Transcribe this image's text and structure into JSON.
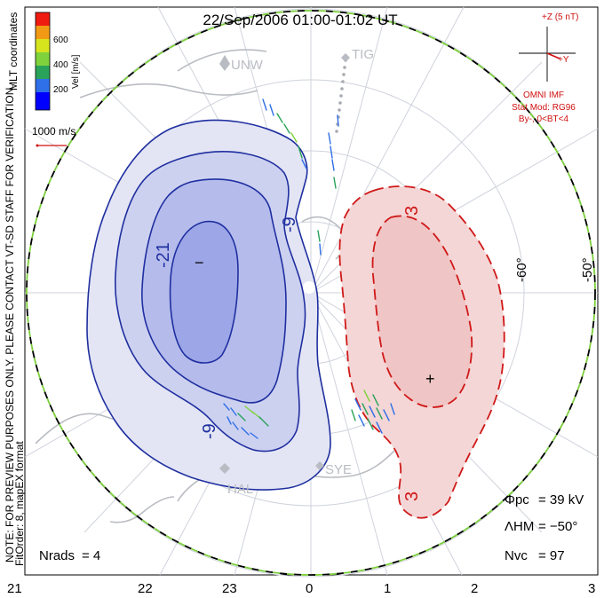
{
  "title": "22/Sep/2006 01:00-01:02 UT",
  "coords_label": "MLT coordinates",
  "colorbar": {
    "label": "Vel [m/s]",
    "ticks": [
      "600",
      "400",
      "200"
    ],
    "colors": [
      "#0000ff",
      "#2f6fe8",
      "#2aa35a",
      "#7fd23c",
      "#d6e41e",
      "#f29a16",
      "#ef1b10"
    ]
  },
  "ref_vector_label": "1000 m/s",
  "imf": {
    "z_label": "+Z (5 nT)",
    "y_label": "+Y",
    "source": "OMNI IMF",
    "model": "Stat Mod: RG96",
    "condition": "By-,  0<BT<4",
    "color": "#d01010"
  },
  "note": "NOTE: FOR PREVIEW PURPOSES ONLY. PLEASE CONTACT VT-SD STAFF FOR VERIFICATION.",
  "fit_order": "FitOrder: 8, mapEX format",
  "stations": [
    "UNW",
    "TIG",
    "HAL",
    "SYE"
  ],
  "lat_labels": [
    "-60°",
    "-50°"
  ],
  "contour_labels": [
    "-21",
    "-9",
    "-9",
    "3",
    "3",
    "-"
  ],
  "extrema_labels": [
    "−",
    "+"
  ],
  "mlt_labels": [
    "21",
    "22",
    "23",
    "0",
    "1",
    "2",
    "3"
  ],
  "stats": {
    "phi_pc_label": "Φpc",
    "phi_pc_value": "= 39 kV",
    "lambda_hm_label": "ΛHM",
    "lambda_hm_value": "= −50°",
    "n_vc_label": "Nvc",
    "n_vc_value": "= 97",
    "n_rads_label": "Nrads",
    "n_rads_value": "= 4"
  },
  "colors": {
    "negative_cell": "#1f2fa0",
    "positive_cell": "#d01818",
    "boundary_green": "#7ccf3c"
  }
}
